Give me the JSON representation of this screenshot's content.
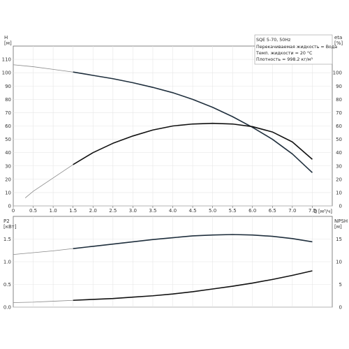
{
  "chart_data": [
    {
      "type": "line",
      "title": "",
      "xlabel": "Q",
      "xunit": "[м³/ч]",
      "ylabel": "H",
      "yunit": "[м]",
      "y2label": "eta",
      "y2unit": "[%]",
      "xlim": [
        0,
        8
      ],
      "ylim": [
        0,
        120
      ],
      "y2lim": [
        0,
        120
      ],
      "x_ticks": [
        "0",
        "0.5",
        "1.0",
        "1.5",
        "2.0",
        "2.5",
        "3.0",
        "3.5",
        "4.0",
        "4.5",
        "5.0",
        "5.5",
        "6.0",
        "6.5",
        "7.0",
        "7.5"
      ],
      "y_ticks": [
        "0",
        "10",
        "20",
        "30",
        "40",
        "50",
        "60",
        "70",
        "80",
        "90",
        "100",
        "110"
      ],
      "y2_ticks": [
        "0",
        "10",
        "20",
        "30",
        "40",
        "50",
        "60",
        "70",
        "80",
        "90",
        "100"
      ],
      "grid": true,
      "legend_box": {
        "lines": [
          "SQE 5-70, 50Hz",
          "Перекачиваемая жидкость = Вода",
          "Темп. жидкости = 20 °C",
          "Плотность = 998.2 кг/м³"
        ]
      },
      "series": [
        {
          "axis": "left",
          "color": "#1f2f3d",
          "thin_until": 1.5,
          "x": [
            0,
            0.5,
            1.0,
            1.5,
            2.0,
            2.5,
            3.0,
            3.5,
            4.0,
            4.5,
            5.0,
            5.5,
            6.0,
            6.5,
            7.0,
            7.5
          ],
          "y": [
            106,
            104.5,
            102.5,
            100.5,
            98,
            95.5,
            92.5,
            89,
            85,
            80,
            74,
            67,
            59,
            50,
            39,
            25
          ]
        },
        {
          "axis": "right",
          "color": "#111111",
          "thin_until": 1.5,
          "x": [
            0.3,
            0.5,
            1.0,
            1.5,
            2.0,
            2.5,
            3.0,
            3.5,
            4.0,
            4.5,
            5.0,
            5.5,
            6.0,
            6.5,
            7.0,
            7.5
          ],
          "y": [
            6,
            11,
            21,
            31,
            40,
            47,
            52.5,
            57,
            60,
            61.5,
            62,
            61.5,
            59.5,
            55.5,
            48,
            35
          ]
        }
      ]
    },
    {
      "type": "line",
      "title": "",
      "xlabel": "",
      "ylabel": "P2",
      "yunit": "[кВт]",
      "y2label": "NPSH",
      "y2unit": "[м]",
      "xlim": [
        0,
        8
      ],
      "ylim": [
        0,
        2
      ],
      "y2lim": [
        0,
        20
      ],
      "y_ticks": [
        "0.0",
        "0.5",
        "1.0",
        "1.5"
      ],
      "y2_ticks": [
        "0",
        "5",
        "10",
        "15"
      ],
      "grid": true,
      "series": [
        {
          "axis": "left",
          "color": "#1f2f3d",
          "thin_until": 1.5,
          "x": [
            0,
            0.5,
            1.0,
            1.5,
            2.0,
            2.5,
            3.0,
            3.5,
            4.0,
            4.5,
            5.0,
            5.5,
            6.0,
            6.5,
            7.0,
            7.5
          ],
          "y": [
            1.16,
            1.2,
            1.24,
            1.29,
            1.34,
            1.39,
            1.44,
            1.49,
            1.53,
            1.57,
            1.59,
            1.6,
            1.59,
            1.56,
            1.51,
            1.44
          ]
        },
        {
          "axis": "left",
          "color": "#111111",
          "thin_until": 1.5,
          "x": [
            0,
            0.5,
            1.0,
            1.5,
            2.0,
            2.5,
            3.0,
            3.5,
            4.0,
            4.5,
            5.0,
            5.5,
            6.0,
            6.5,
            7.0,
            7.5
          ],
          "y": [
            0.1,
            0.11,
            0.13,
            0.15,
            0.17,
            0.19,
            0.22,
            0.25,
            0.29,
            0.34,
            0.4,
            0.46,
            0.53,
            0.61,
            0.7,
            0.8
          ]
        }
      ]
    }
  ]
}
